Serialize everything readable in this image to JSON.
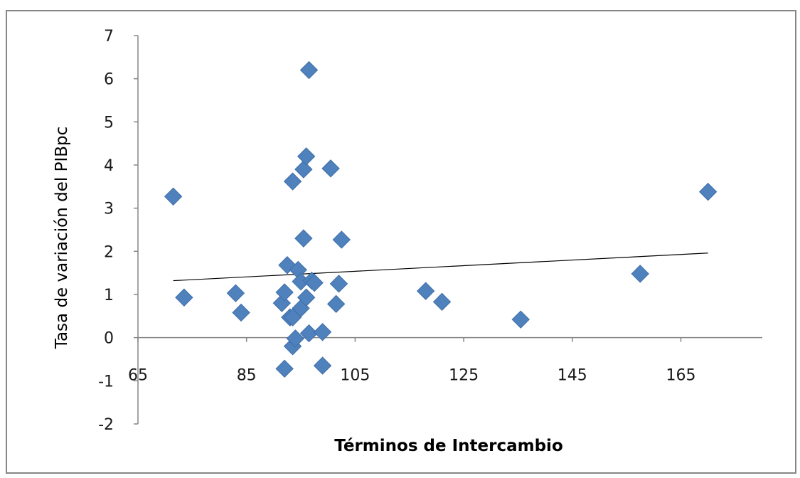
{
  "chart_data": {
    "type": "scatter",
    "title": "",
    "xlabel": "Términos de Intercambio",
    "ylabel": "Tasa de variación del PIBpc",
    "xlim": [
      65,
      180
    ],
    "ylim": [
      -2,
      7
    ],
    "x_ticks": [
      65,
      85,
      105,
      125,
      145,
      165
    ],
    "y_ticks": [
      -2,
      -1,
      0,
      1,
      2,
      3,
      4,
      5,
      6,
      7
    ],
    "x_axis_crosses_at_y": 0,
    "grid": false,
    "legend": "none",
    "marker": "diamond",
    "marker_color": "#4f81bd",
    "trendline_color": "#000000",
    "trendline": {
      "type": "linear",
      "x": [
        71.5,
        170
      ],
      "y": [
        1.32,
        1.96
      ]
    },
    "points": [
      {
        "x": 71.5,
        "y": 3.27
      },
      {
        "x": 73.5,
        "y": 0.93
      },
      {
        "x": 83.0,
        "y": 1.03
      },
      {
        "x": 84.0,
        "y": 0.58
      },
      {
        "x": 91.5,
        "y": 0.8
      },
      {
        "x": 92.0,
        "y": 1.05
      },
      {
        "x": 92.5,
        "y": 1.68
      },
      {
        "x": 92.0,
        "y": -0.72
      },
      {
        "x": 93.0,
        "y": 0.47
      },
      {
        "x": 93.5,
        "y": -0.2
      },
      {
        "x": 93.5,
        "y": 3.62
      },
      {
        "x": 93.5,
        "y": 0.47
      },
      {
        "x": 94.0,
        "y": -0.02
      },
      {
        "x": 94.5,
        "y": 1.57
      },
      {
        "x": 95.0,
        "y": 1.3
      },
      {
        "x": 95.0,
        "y": 0.68
      },
      {
        "x": 95.5,
        "y": 2.3
      },
      {
        "x": 95.5,
        "y": 3.9
      },
      {
        "x": 96.0,
        "y": 4.2
      },
      {
        "x": 96.0,
        "y": 0.93
      },
      {
        "x": 96.5,
        "y": 0.1
      },
      {
        "x": 96.5,
        "y": 6.2
      },
      {
        "x": 97.0,
        "y": 1.32
      },
      {
        "x": 97.5,
        "y": 1.27
      },
      {
        "x": 99.0,
        "y": 0.13
      },
      {
        "x": 99.0,
        "y": -0.65
      },
      {
        "x": 100.5,
        "y": 3.92
      },
      {
        "x": 101.5,
        "y": 0.78
      },
      {
        "x": 102.0,
        "y": 1.25
      },
      {
        "x": 102.5,
        "y": 2.27
      },
      {
        "x": 118.0,
        "y": 1.08
      },
      {
        "x": 121.0,
        "y": 0.83
      },
      {
        "x": 135.5,
        "y": 0.42
      },
      {
        "x": 157.5,
        "y": 1.48
      },
      {
        "x": 170.0,
        "y": 3.38
      }
    ]
  }
}
